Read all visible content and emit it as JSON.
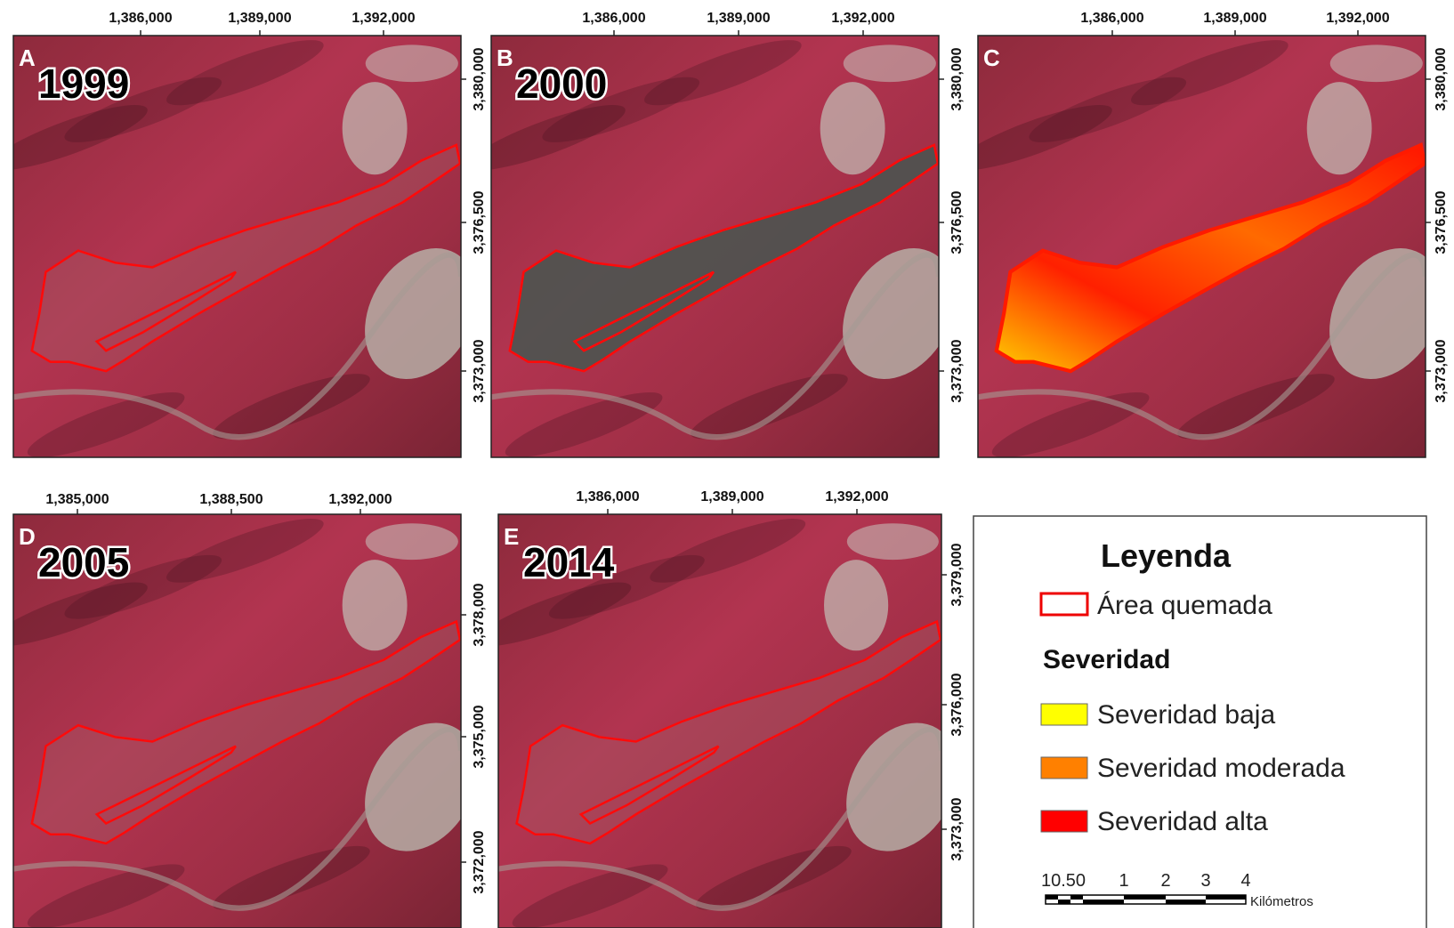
{
  "panels": [
    {
      "letter": "A",
      "year": "1999",
      "top_ticks": [
        "1,386,000",
        "1,389,000",
        "1,392,000"
      ],
      "right_ticks": [
        "3,380,000",
        "3,376,500",
        "3,373,000"
      ]
    },
    {
      "letter": "B",
      "year": "2000",
      "top_ticks": [
        "1,386,000",
        "1,389,000",
        "1,392,000"
      ],
      "right_ticks": [
        "3,380,000",
        "3,376,500",
        "3,373,000"
      ]
    },
    {
      "letter": "C",
      "top_ticks": [
        "1,386,000",
        "1,389,000",
        "1,392,000"
      ],
      "right_ticks": [
        "3,380,000",
        "3,376,500",
        "3,373,000"
      ]
    },
    {
      "letter": "D",
      "year": "2005",
      "top_ticks": [
        "1,385,000",
        "1,388,500",
        "1,392,000"
      ],
      "right_ticks": [
        "3,378,000",
        "3,375,000",
        "3,372,000"
      ]
    },
    {
      "letter": "E",
      "year": "2014",
      "top_ticks": [
        "1,386,000",
        "1,389,000",
        "1,392,000"
      ],
      "right_ticks": [
        "3,379,000",
        "3,376,000",
        "3,373,000"
      ]
    }
  ],
  "legend": {
    "title": "Leyenda",
    "burned_area": "Área quemada",
    "severity_title": "Severidad",
    "items": [
      "Severidad baja",
      "Severidad moderada",
      "Severidad alta"
    ],
    "scale_labels": [
      "10.50",
      "1",
      "2",
      "3",
      "4"
    ],
    "scale_unit": "Kilómetros"
  }
}
